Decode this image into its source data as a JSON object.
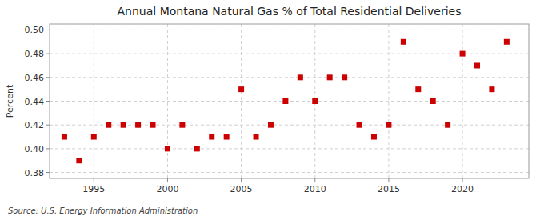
{
  "chart_data": {
    "type": "scatter",
    "title": "Annual Montana Natural Gas % of Total Residential Deliveries",
    "y_label": "Percent",
    "source": "Source: U.S. Energy Information Administration",
    "color": "#cc0000",
    "marker": "square",
    "grid": true,
    "xlim": [
      1992,
      2024.5
    ],
    "ylim": [
      0.375,
      0.505
    ],
    "xticks": [
      1995,
      2000,
      2005,
      2010,
      2015,
      2020
    ],
    "yticks": [
      0.38,
      {
        "value": 0.4,
        "label": "0.40"
      },
      0.42,
      0.44,
      0.46,
      0.48,
      {
        "value": 0.5,
        "label": "0.50"
      }
    ],
    "x": [
      1993,
      1994,
      1995,
      1996,
      1997,
      1998,
      1999,
      2000,
      2001,
      2002,
      2003,
      2004,
      2005,
      2006,
      2007,
      2008,
      2009,
      2010,
      2011,
      2012,
      2013,
      2014,
      2015,
      2016,
      2017,
      2018,
      2019,
      2020,
      2021,
      2022,
      2023
    ],
    "values": [
      0.41,
      0.39,
      0.41,
      0.42,
      0.42,
      0.42,
      0.42,
      0.4,
      0.42,
      0.4,
      0.41,
      0.41,
      0.45,
      0.41,
      0.42,
      0.44,
      0.46,
      0.44,
      0.46,
      0.46,
      0.42,
      0.41,
      0.42,
      0.49,
      0.45,
      0.44,
      0.42,
      0.48,
      0.47,
      0.45,
      0.49
    ]
  }
}
